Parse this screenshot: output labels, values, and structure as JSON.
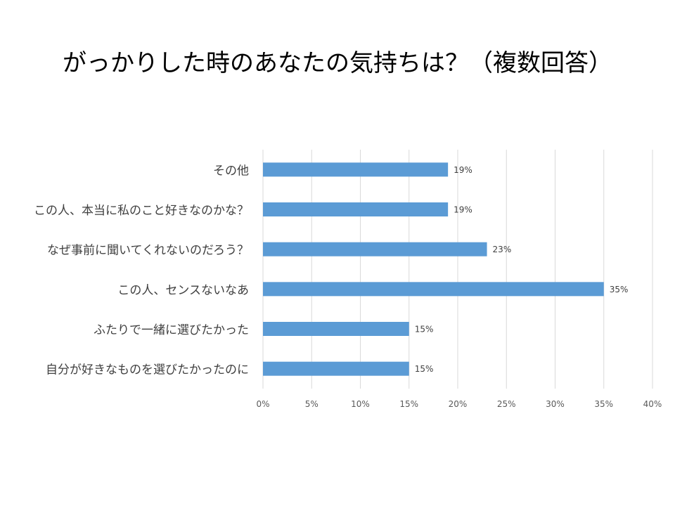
{
  "chart_data": {
    "type": "bar",
    "orientation": "horizontal",
    "title": "がっかりした時のあなたの気持ちは？（複数回答）",
    "categories": [
      "その他",
      "この人、本当に私のこと好きなのかな？",
      "なぜ事前に聞いてくれないのだろう？",
      "この人、センスないなあ",
      "ふたりで一緒に選びたかった",
      "自分が好きなものを選びたかったのに"
    ],
    "values": [
      19,
      19,
      23,
      35,
      15,
      15
    ],
    "data_labels": [
      "19%",
      "19%",
      "23%",
      "35%",
      "15%",
      "15%"
    ],
    "xlim": [
      0,
      40
    ],
    "x_ticks": [
      "0%",
      "5%",
      "10%",
      "15%",
      "20%",
      "25%",
      "30%",
      "35%",
      "40%"
    ],
    "grid": true,
    "legend": "none",
    "bar_color": "#5b9bd5"
  }
}
